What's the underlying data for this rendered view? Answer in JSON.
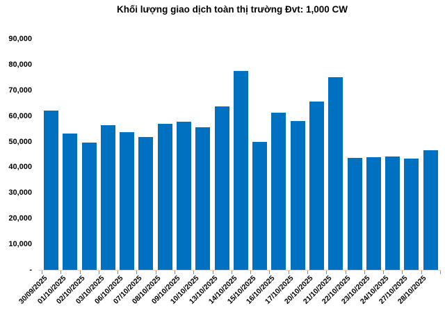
{
  "chart_data": {
    "type": "bar",
    "title": "Khối lượng giao dịch toàn thị trường Đvt: 1,000 CW",
    "categories": [
      "30/09/2025",
      "01/10/2025",
      "02/10/2025",
      "03/10/2025",
      "06/10/2025",
      "07/10/2025",
      "08/10/2025",
      "09/10/2025",
      "10/10/2025",
      "13/10/2025",
      "14/10/2025",
      "15/10/2025",
      "16/10/2025",
      "17/10/2025",
      "20/10/2025",
      "21/10/2025",
      "22/10/2025",
      "23/10/2025",
      "24/10/2025",
      "27/10/2025",
      "28/10/2025"
    ],
    "values": [
      62000,
      53200,
      49500,
      56500,
      53700,
      51900,
      56800,
      57700,
      55700,
      63800,
      77600,
      50000,
      61300,
      58000,
      65500,
      75000,
      43600,
      44000,
      44300,
      43300,
      46700
    ],
    "xlabel": "",
    "ylabel": "",
    "ylim": [
      0,
      90000
    ],
    "ytick_interval": 10000,
    "yticks": [
      {
        "value": 0,
        "label": "-"
      },
      {
        "value": 10000,
        "label": "10,000"
      },
      {
        "value": 20000,
        "label": "20,000"
      },
      {
        "value": 30000,
        "label": "30,000"
      },
      {
        "value": 40000,
        "label": "40,000"
      },
      {
        "value": 50000,
        "label": "50,000"
      },
      {
        "value": 60000,
        "label": "60,000"
      },
      {
        "value": 70000,
        "label": "70,000"
      },
      {
        "value": 80000,
        "label": "80,000"
      },
      {
        "value": 90000,
        "label": "90,000"
      }
    ],
    "grid": false,
    "legend": false,
    "colors": {
      "bar": "#0070C0",
      "axis_line": "#D9D9D9",
      "tick": "#8C8C8C",
      "text": "#000000",
      "background": "#FFFFFF"
    }
  }
}
